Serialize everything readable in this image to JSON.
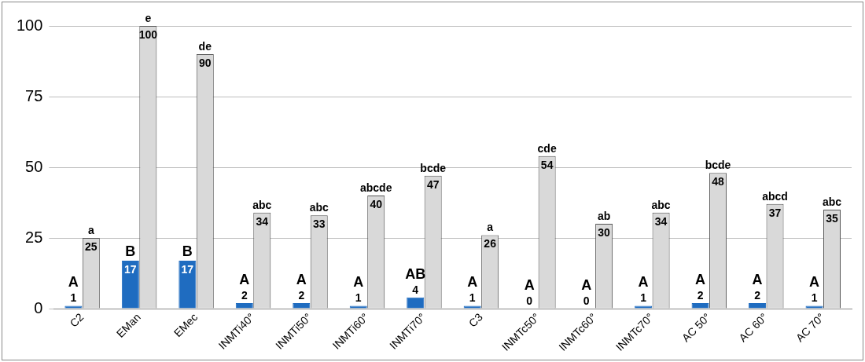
{
  "chart_data": {
    "type": "bar",
    "categories": [
      "C2",
      "EMan",
      "EMec",
      "INMTi40°",
      "INMTi50°",
      "INMTi60°",
      "INMTi70°",
      "C3",
      "INMTc50°",
      "INMTc60°",
      "INMTc70°",
      "AC 50°",
      "AC 60°",
      "AC 70°"
    ],
    "series": [
      {
        "color": "#1f6cc0",
        "values": [
          1,
          17,
          17,
          2,
          2,
          1,
          4,
          1,
          0,
          0,
          1,
          2,
          2,
          1
        ]
      },
      {
        "color": "#d9d9d9",
        "values": [
          25,
          100,
          90,
          34,
          33,
          40,
          47,
          26,
          54,
          30,
          34,
          48,
          37,
          35
        ]
      }
    ],
    "ylim": [
      0,
      100
    ],
    "yticks": [
      0,
      25,
      50,
      75,
      100
    ],
    "grid": "y",
    "legend": false,
    "data_labels": true,
    "annotations": [
      {
        "text": "A",
        "x": "C2",
        "y": 1
      },
      {
        "text": "B",
        "x": "EMan",
        "y": 17
      },
      {
        "text": "B",
        "x": "EMec",
        "y": 17
      },
      {
        "text": "A",
        "x": "INMTi40°",
        "y": 2
      },
      {
        "text": "A",
        "x": "INMTi50°",
        "y": 2
      },
      {
        "text": "A",
        "x": "INMTi60°",
        "y": 1
      },
      {
        "text": "AB",
        "x": "INMTi70°",
        "y": 4
      },
      {
        "text": "A",
        "x": "C3",
        "y": 1
      },
      {
        "text": "A",
        "x": "INMTc50°",
        "y": 0
      },
      {
        "text": "A",
        "x": "INMTc60°",
        "y": 0
      },
      {
        "text": "A",
        "x": "INMTc70°",
        "y": 1
      },
      {
        "text": "A",
        "x": "AC 50°",
        "y": 2
      },
      {
        "text": "A",
        "x": "AC 60°",
        "y": 2
      },
      {
        "text": "A",
        "x": "AC 70°",
        "y": 1
      },
      {
        "text": "a",
        "x": "C2",
        "y": 25
      },
      {
        "text": "e",
        "x": "EMan",
        "y": 100
      },
      {
        "text": "de",
        "x": "EMec",
        "y": 90
      },
      {
        "text": "abc",
        "x": "INMTi40°",
        "y": 34
      },
      {
        "text": "abc",
        "x": "INMTi50°",
        "y": 33
      },
      {
        "text": "abcde",
        "x": "INMTi60°",
        "y": 40
      },
      {
        "text": "bcde",
        "x": "INMTi70°",
        "y": 47
      },
      {
        "text": "a",
        "x": "C3",
        "y": 26
      },
      {
        "text": "cde",
        "x": "INMTc50°",
        "y": 54
      },
      {
        "text": "ab",
        "x": "INMTc60°",
        "y": 30
      },
      {
        "text": "abc",
        "x": "INMTc70°",
        "y": 34
      },
      {
        "text": "bcde",
        "x": "AC 50°",
        "y": 48
      },
      {
        "text": "abcd",
        "x": "AC 60°",
        "y": 37
      },
      {
        "text": "abc",
        "x": "AC 70°",
        "y": 35
      }
    ]
  }
}
